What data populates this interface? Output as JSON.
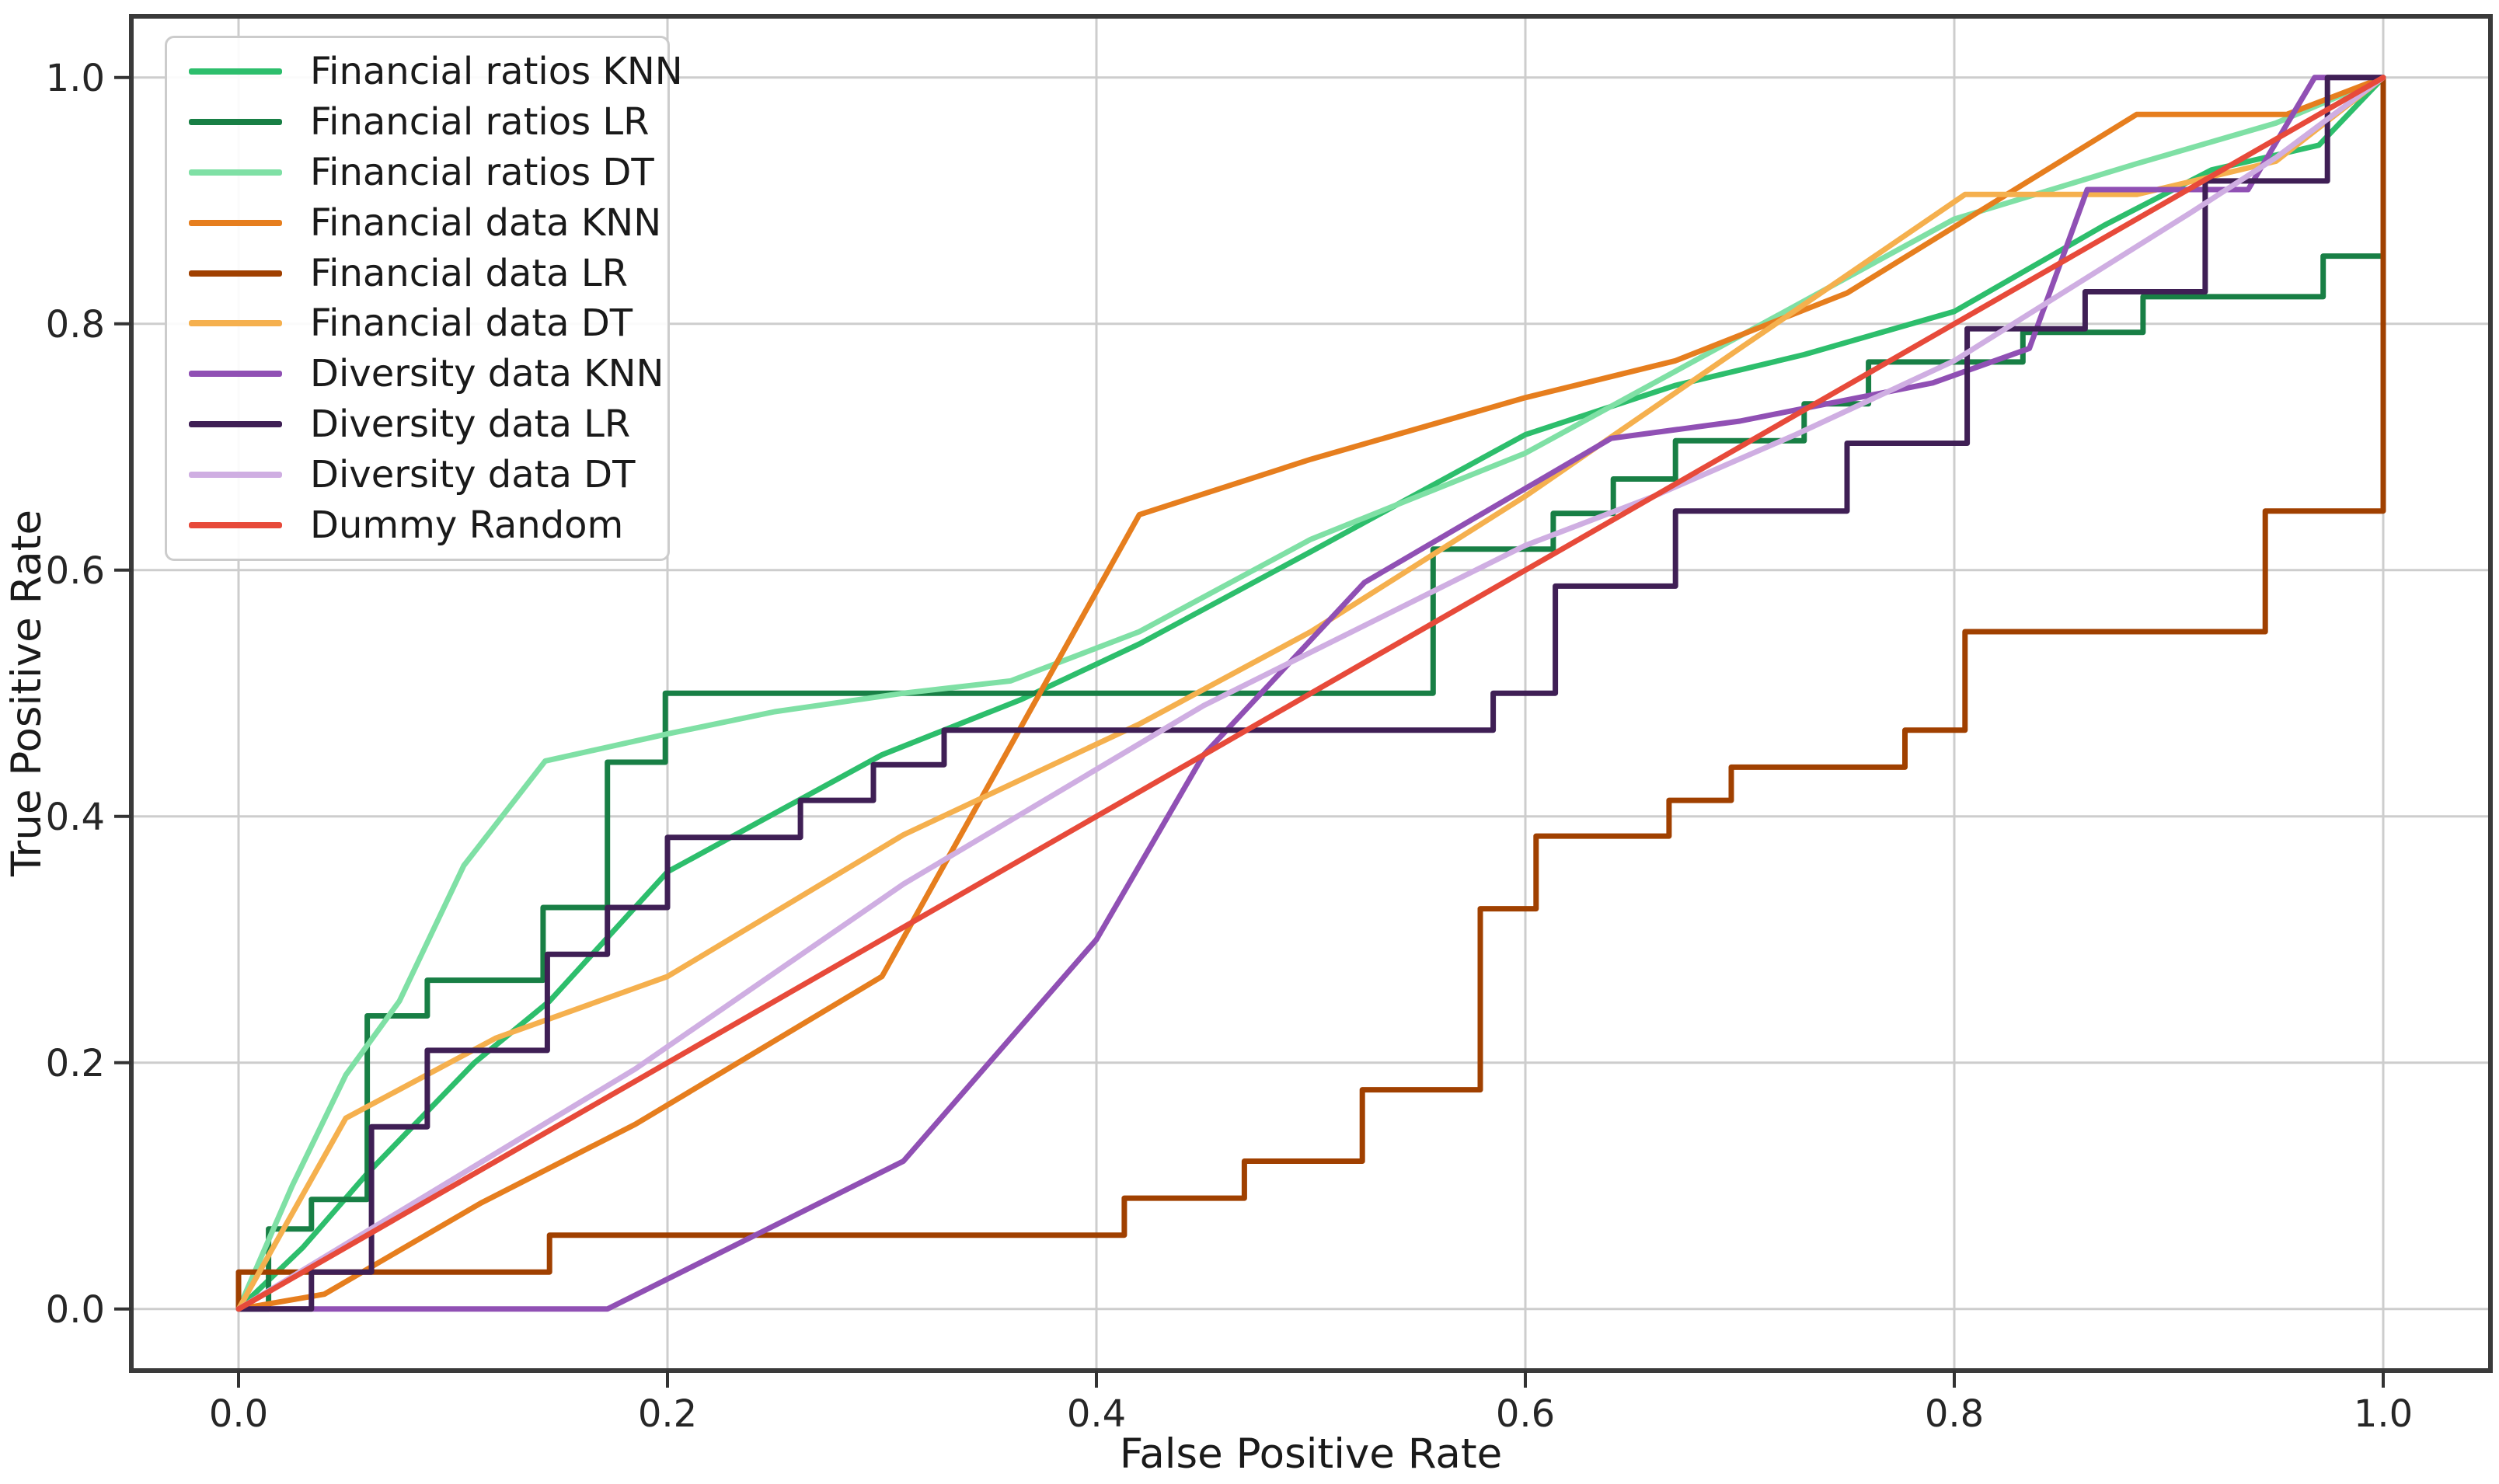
{
  "figure": {
    "background": "#ffffff"
  },
  "axes": {
    "xlabel": "False Positive Rate",
    "ylabel": "True Positive Rate",
    "tick_values": [
      0.0,
      0.2,
      0.4,
      0.6,
      0.8,
      1.0
    ],
    "x_tick_labels": [
      "0.0",
      "0.2",
      "0.4",
      "0.6",
      "0.8",
      "1.0"
    ],
    "y_tick_labels": [
      "0.0",
      "0.2",
      "0.4",
      "0.6",
      "0.8",
      "1.0"
    ],
    "grid": true,
    "grid_color": "#cdcdcd",
    "spine_color": "#3a3a3a"
  },
  "legend": {
    "position": "upper-left"
  },
  "chart_data": {
    "type": "line",
    "title": "",
    "xlabel": "False Positive Rate",
    "ylabel": "True Positive Rate",
    "xlim": [
      -0.05,
      1.05
    ],
    "ylim": [
      -0.05,
      1.05
    ],
    "legend_position": "upper left",
    "grid": true,
    "series": [
      {
        "name": "Financial ratios KNN",
        "color": "#2dbe6c",
        "points": [
          [
            0,
            0
          ],
          [
            0.03,
            0.05
          ],
          [
            0.06,
            0.11
          ],
          [
            0.11,
            0.2
          ],
          [
            0.145,
            0.25
          ],
          [
            0.2,
            0.355
          ],
          [
            0.3,
            0.45
          ],
          [
            0.365,
            0.495
          ],
          [
            0.42,
            0.54
          ],
          [
            0.5,
            0.615
          ],
          [
            0.6,
            0.71
          ],
          [
            0.67,
            0.75
          ],
          [
            0.73,
            0.775
          ],
          [
            0.8,
            0.81
          ],
          [
            0.87,
            0.88
          ],
          [
            0.92,
            0.925
          ],
          [
            0.97,
            0.945
          ],
          [
            1,
            1
          ]
        ]
      },
      {
        "name": "Financial ratios LR",
        "color": "#187f45",
        "points": [
          [
            0,
            0
          ],
          [
            0.014,
            0
          ],
          [
            0.014,
            0.065
          ],
          [
            0.034,
            0.065
          ],
          [
            0.034,
            0.089
          ],
          [
            0.06,
            0.089
          ],
          [
            0.06,
            0.238
          ],
          [
            0.088,
            0.238
          ],
          [
            0.088,
            0.267
          ],
          [
            0.142,
            0.267
          ],
          [
            0.142,
            0.326
          ],
          [
            0.172,
            0.326
          ],
          [
            0.172,
            0.444
          ],
          [
            0.199,
            0.444
          ],
          [
            0.199,
            0.5
          ],
          [
            0.557,
            0.5
          ],
          [
            0.557,
            0.617
          ],
          [
            0.613,
            0.617
          ],
          [
            0.613,
            0.646
          ],
          [
            0.641,
            0.646
          ],
          [
            0.641,
            0.674
          ],
          [
            0.67,
            0.674
          ],
          [
            0.67,
            0.705
          ],
          [
            0.73,
            0.705
          ],
          [
            0.73,
            0.735
          ],
          [
            0.76,
            0.735
          ],
          [
            0.76,
            0.769
          ],
          [
            0.832,
            0.769
          ],
          [
            0.832,
            0.793
          ],
          [
            0.888,
            0.793
          ],
          [
            0.888,
            0.822
          ],
          [
            0.972,
            0.822
          ],
          [
            0.972,
            0.855
          ],
          [
            1,
            0.855
          ],
          [
            1,
            1
          ]
        ]
      },
      {
        "name": "Financial ratios DT",
        "color": "#7fe0a5",
        "points": [
          [
            0,
            0
          ],
          [
            0.025,
            0.1
          ],
          [
            0.05,
            0.19
          ],
          [
            0.075,
            0.25
          ],
          [
            0.105,
            0.36
          ],
          [
            0.143,
            0.445
          ],
          [
            0.2,
            0.467
          ],
          [
            0.25,
            0.485
          ],
          [
            0.31,
            0.5
          ],
          [
            0.36,
            0.51
          ],
          [
            0.42,
            0.55
          ],
          [
            0.5,
            0.625
          ],
          [
            0.6,
            0.695
          ],
          [
            0.7,
            0.79
          ],
          [
            0.8,
            0.885
          ],
          [
            0.885,
            0.93
          ],
          [
            0.95,
            0.963
          ],
          [
            1,
            1
          ]
        ]
      },
      {
        "name": "Financial data KNN",
        "color": "#e67e1e",
        "points": [
          [
            0,
            0
          ],
          [
            0.04,
            0.012
          ],
          [
            0.113,
            0.086
          ],
          [
            0.185,
            0.15
          ],
          [
            0.3,
            0.27
          ],
          [
            0.42,
            0.645
          ],
          [
            0.5,
            0.69
          ],
          [
            0.6,
            0.74
          ],
          [
            0.67,
            0.77
          ],
          [
            0.75,
            0.825
          ],
          [
            0.885,
            0.97
          ],
          [
            0.955,
            0.97
          ],
          [
            1,
            1
          ]
        ]
      },
      {
        "name": "Financial data LR",
        "color": "#a04000",
        "points": [
          [
            0,
            0
          ],
          [
            0,
            0.03
          ],
          [
            0.145,
            0.03
          ],
          [
            0.145,
            0.06
          ],
          [
            0.413,
            0.06
          ],
          [
            0.413,
            0.09
          ],
          [
            0.469,
            0.09
          ],
          [
            0.469,
            0.12
          ],
          [
            0.524,
            0.12
          ],
          [
            0.524,
            0.178
          ],
          [
            0.579,
            0.178
          ],
          [
            0.579,
            0.325
          ],
          [
            0.605,
            0.325
          ],
          [
            0.605,
            0.384
          ],
          [
            0.667,
            0.384
          ],
          [
            0.667,
            0.413
          ],
          [
            0.696,
            0.413
          ],
          [
            0.696,
            0.44
          ],
          [
            0.777,
            0.44
          ],
          [
            0.777,
            0.47
          ],
          [
            0.805,
            0.47
          ],
          [
            0.805,
            0.55
          ],
          [
            0.945,
            0.55
          ],
          [
            0.945,
            0.648
          ],
          [
            1,
            0.648
          ],
          [
            1,
            1
          ]
        ]
      },
      {
        "name": "Financial data DT",
        "color": "#f5b04e",
        "points": [
          [
            0,
            0
          ],
          [
            0.05,
            0.155
          ],
          [
            0.12,
            0.22
          ],
          [
            0.2,
            0.27
          ],
          [
            0.31,
            0.385
          ],
          [
            0.42,
            0.475
          ],
          [
            0.5,
            0.55
          ],
          [
            0.6,
            0.66
          ],
          [
            0.7,
            0.78
          ],
          [
            0.805,
            0.905
          ],
          [
            0.885,
            0.905
          ],
          [
            0.95,
            0.932
          ],
          [
            1,
            1
          ]
        ]
      },
      {
        "name": "Diversity data KNN",
        "color": "#9050b4",
        "points": [
          [
            0,
            0
          ],
          [
            0.172,
            0
          ],
          [
            0.31,
            0.12
          ],
          [
            0.4,
            0.3
          ],
          [
            0.45,
            0.45
          ],
          [
            0.525,
            0.59
          ],
          [
            0.64,
            0.707
          ],
          [
            0.7,
            0.721
          ],
          [
            0.79,
            0.752
          ],
          [
            0.835,
            0.78
          ],
          [
            0.862,
            0.909
          ],
          [
            0.937,
            0.909
          ],
          [
            0.968,
            1
          ],
          [
            1,
            1
          ]
        ]
      },
      {
        "name": "Diversity data LR",
        "color": "#3f1f55",
        "points": [
          [
            0,
            0
          ],
          [
            0.034,
            0
          ],
          [
            0.034,
            0.03
          ],
          [
            0.062,
            0.03
          ],
          [
            0.062,
            0.148
          ],
          [
            0.088,
            0.148
          ],
          [
            0.088,
            0.21
          ],
          [
            0.144,
            0.21
          ],
          [
            0.144,
            0.288
          ],
          [
            0.172,
            0.288
          ],
          [
            0.172,
            0.326
          ],
          [
            0.2,
            0.326
          ],
          [
            0.2,
            0.383
          ],
          [
            0.262,
            0.383
          ],
          [
            0.262,
            0.413
          ],
          [
            0.296,
            0.413
          ],
          [
            0.296,
            0.442
          ],
          [
            0.329,
            0.442
          ],
          [
            0.329,
            0.47
          ],
          [
            0.585,
            0.47
          ],
          [
            0.585,
            0.5
          ],
          [
            0.614,
            0.5
          ],
          [
            0.614,
            0.587
          ],
          [
            0.67,
            0.587
          ],
          [
            0.67,
            0.648
          ],
          [
            0.75,
            0.648
          ],
          [
            0.75,
            0.703
          ],
          [
            0.806,
            0.703
          ],
          [
            0.806,
            0.796
          ],
          [
            0.861,
            0.796
          ],
          [
            0.861,
            0.826
          ],
          [
            0.917,
            0.826
          ],
          [
            0.917,
            0.916
          ],
          [
            0.974,
            0.916
          ],
          [
            0.974,
            1
          ],
          [
            1,
            1
          ]
        ]
      },
      {
        "name": "Diversity data DT",
        "color": "#cfaee2",
        "points": [
          [
            0,
            0
          ],
          [
            0.185,
            0.195
          ],
          [
            0.31,
            0.345
          ],
          [
            0.45,
            0.49
          ],
          [
            0.6,
            0.62
          ],
          [
            0.66,
            0.66
          ],
          [
            0.726,
            0.71
          ],
          [
            0.8,
            0.77
          ],
          [
            0.91,
            0.89
          ],
          [
            0.95,
            0.935
          ],
          [
            1,
            1
          ]
        ]
      },
      {
        "name": "Dummy Random",
        "color": "#e74a3a",
        "points": [
          [
            0,
            0
          ],
          [
            1,
            1
          ]
        ]
      }
    ]
  }
}
